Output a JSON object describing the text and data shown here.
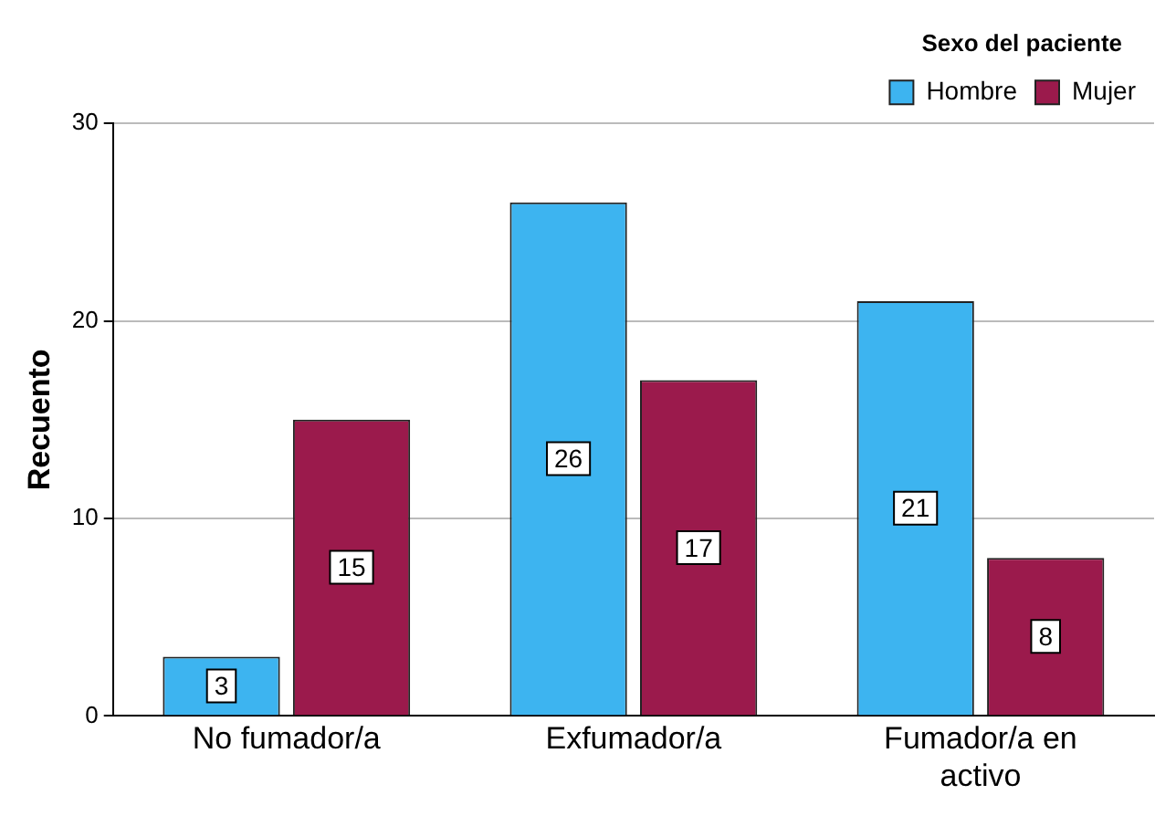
{
  "chart_data": {
    "type": "bar",
    "ylabel": "Recuento",
    "legend_title": "Sexo del paciente",
    "categories": [
      "No fumador/a",
      "Exfumador/a",
      "Fumador/a en activo"
    ],
    "series": [
      {
        "name": "Hombre",
        "color": "#3db4f0",
        "values": [
          3,
          26,
          21
        ]
      },
      {
        "name": "Mujer",
        "color": "#9b1a4c",
        "values": [
          15,
          17,
          8
        ]
      }
    ],
    "ylim": [
      0,
      30
    ],
    "yticks": [
      0,
      10,
      20,
      30
    ],
    "grid": "y",
    "legend": "top right",
    "data_labels": true
  }
}
